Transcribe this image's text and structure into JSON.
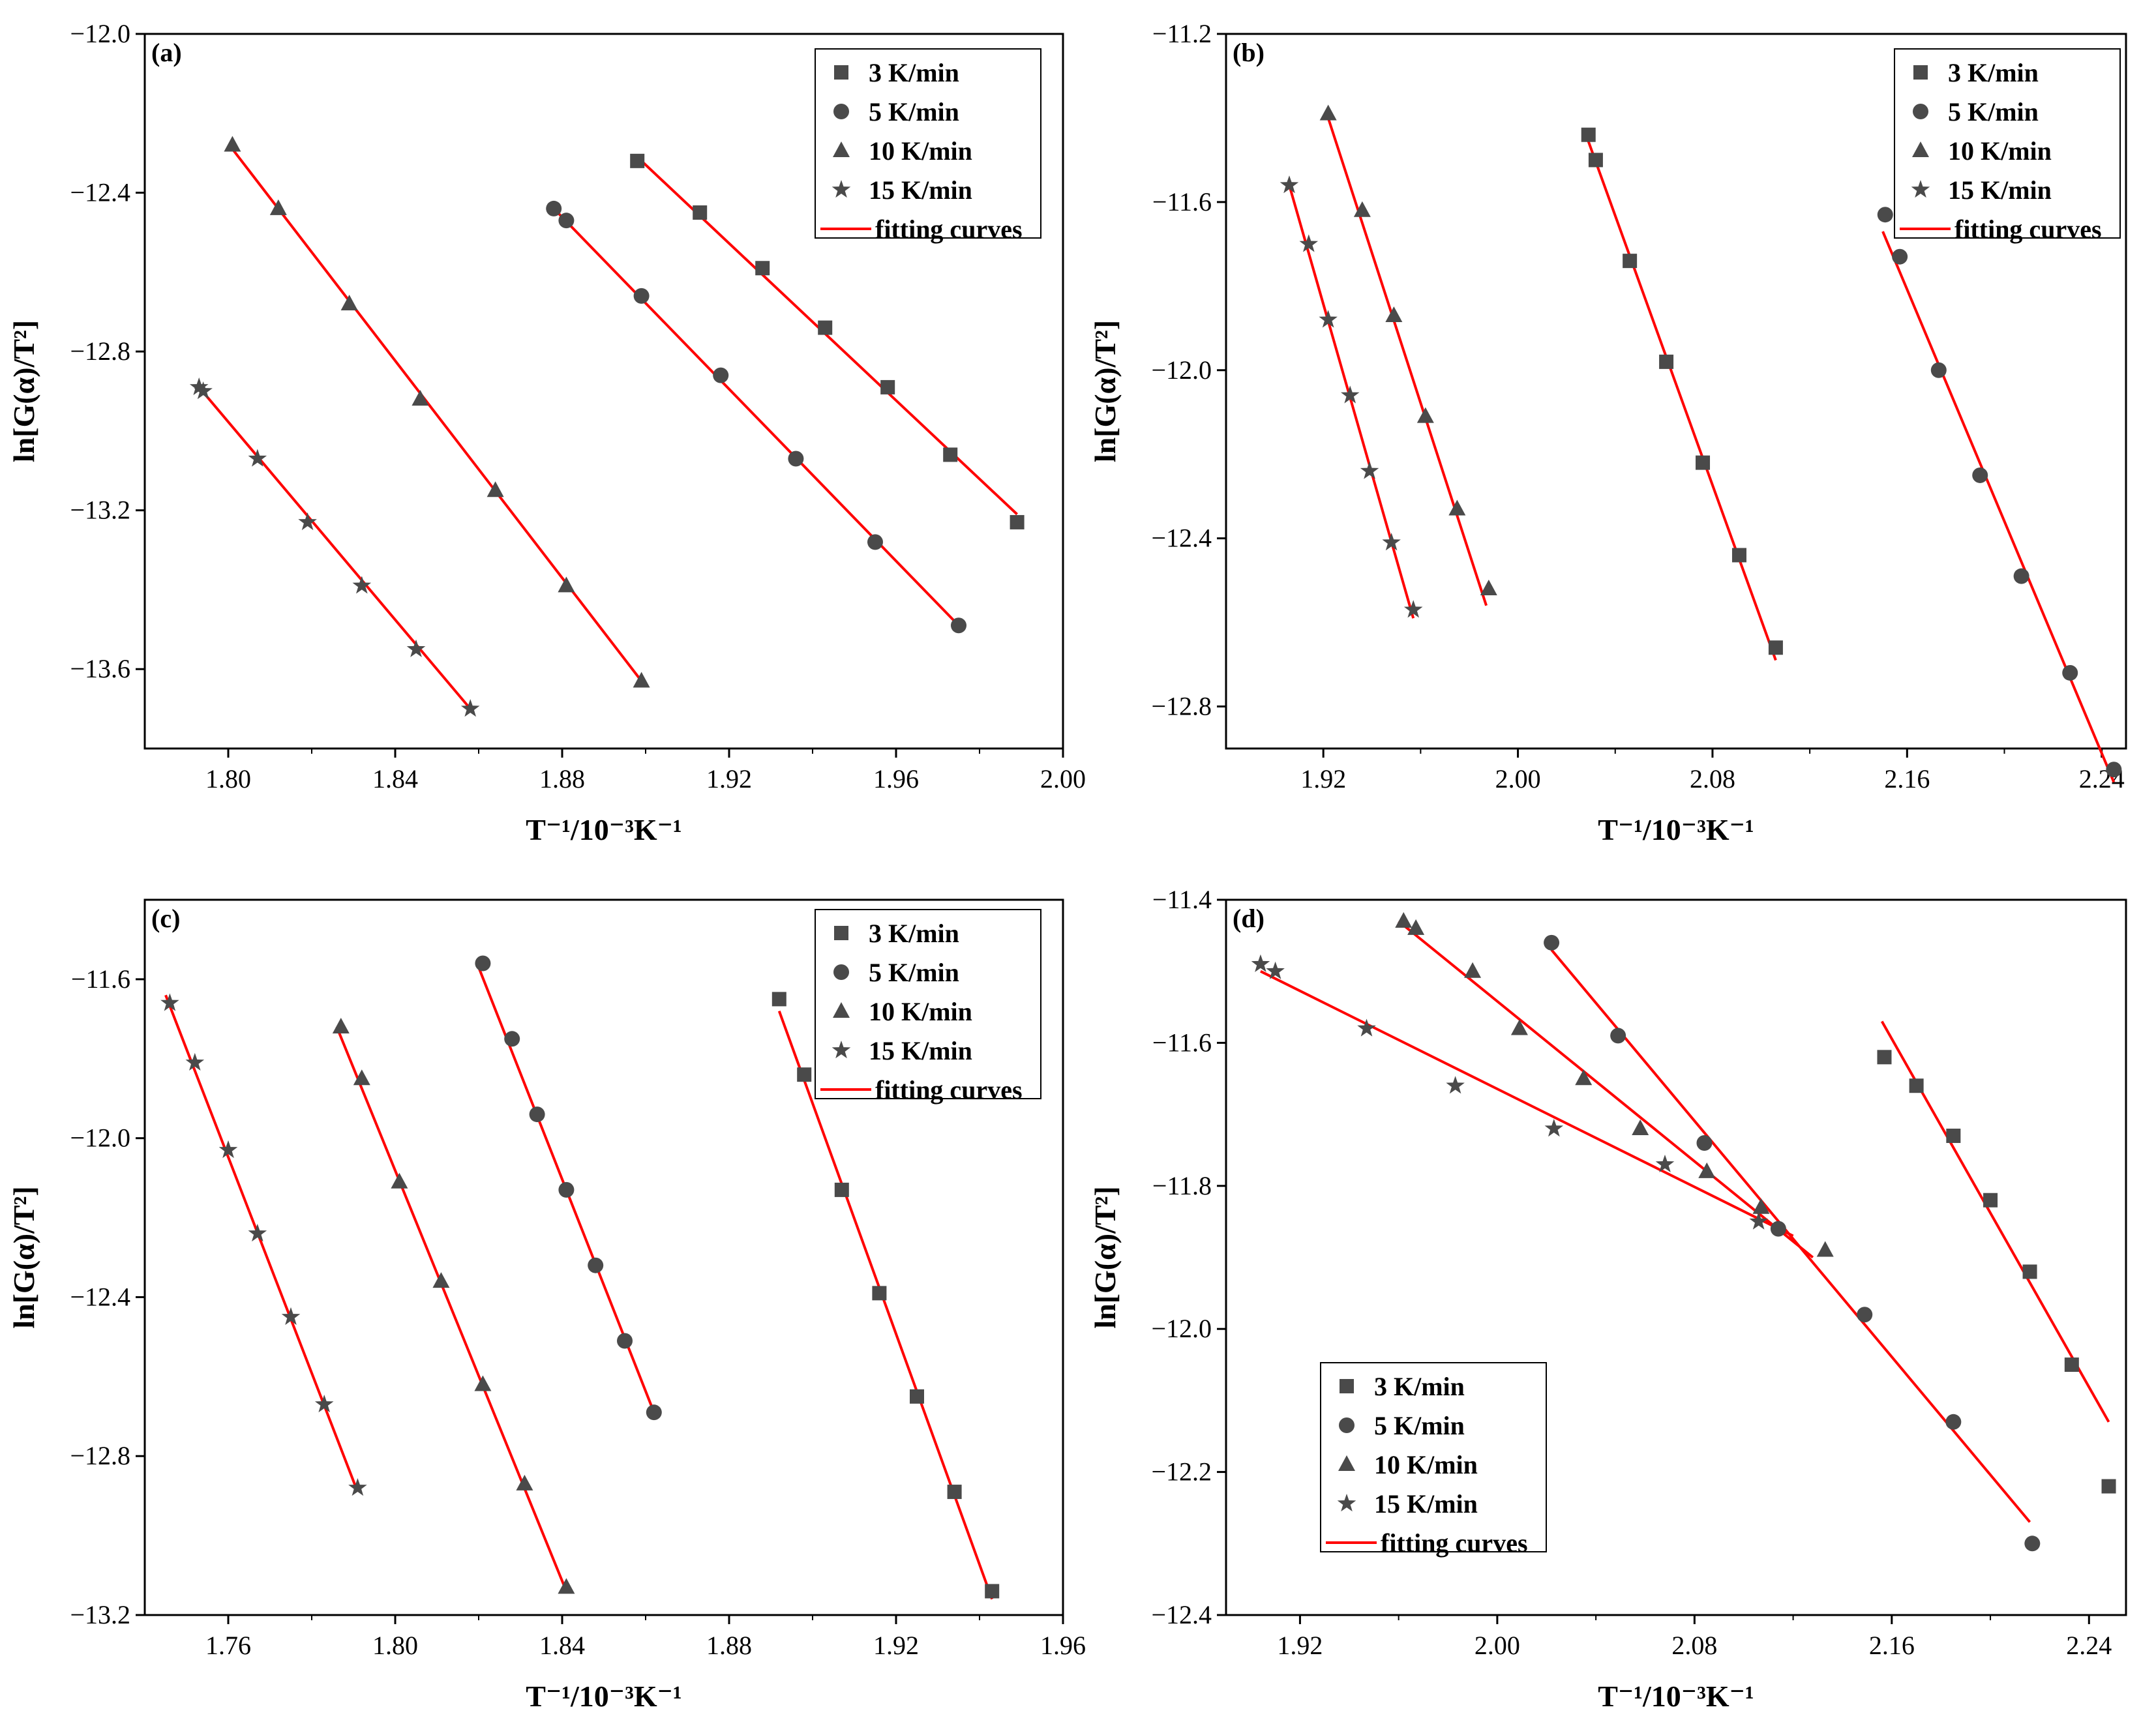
{
  "colors": {
    "marker": "#4a4a4a",
    "fit": "#ff0000",
    "axis": "#000000",
    "background": "#ffffff"
  },
  "chart_data": [
    {
      "panel": "(a)",
      "type": "scatter",
      "xlabel": "T⁻¹/10⁻³K⁻¹",
      "ylabel": "ln[G(α)/T²]",
      "xlim": [
        1.78,
        2.0
      ],
      "ylim": [
        -13.8,
        -12.0
      ],
      "xticks": [
        1.8,
        1.84,
        1.88,
        1.92,
        1.96,
        2.0
      ],
      "xtick_labels": [
        "1.80",
        "1.84",
        "1.88",
        "1.92",
        "1.96",
        "2.00"
      ],
      "yticks": [
        -12.0,
        -12.4,
        -12.8,
        -13.2,
        -13.6
      ],
      "ytick_labels": [
        "−12.0",
        "−12.4",
        "−12.8",
        "−13.2",
        "−13.6"
      ],
      "legend_position": "top-right",
      "fit_label": "fitting curves",
      "series": [
        {
          "name": "3 K/min",
          "marker": "square",
          "x": [
            1.898,
            1.913,
            1.928,
            1.943,
            1.958,
            1.973,
            1.989
          ],
          "y": [
            -12.32,
            -12.45,
            -12.59,
            -12.74,
            -12.89,
            -13.06,
            -13.23
          ],
          "fit": [
            [
              1.898,
              -12.31
            ],
            [
              1.989,
              -13.21
            ]
          ]
        },
        {
          "name": "5 K/min",
          "marker": "circle",
          "x": [
            1.878,
            1.881,
            1.899,
            1.918,
            1.936,
            1.955,
            1.975
          ],
          "y": [
            -12.44,
            -12.47,
            -12.66,
            -12.86,
            -13.07,
            -13.28,
            -13.49
          ],
          "fit": [
            [
              1.878,
              -12.44
            ],
            [
              1.975,
              -13.49
            ]
          ]
        },
        {
          "name": "10 K/min",
          "marker": "triangle",
          "x": [
            1.801,
            1.812,
            1.829,
            1.846,
            1.864,
            1.881,
            1.899
          ],
          "y": [
            -12.28,
            -12.44,
            -12.68,
            -12.92,
            -13.15,
            -13.39,
            -13.63
          ],
          "fit": [
            [
              1.801,
              -12.29
            ],
            [
              1.899,
              -13.63
            ]
          ]
        },
        {
          "name": "15 K/min",
          "marker": "star",
          "x": [
            1.793,
            1.794,
            1.807,
            1.819,
            1.832,
            1.845,
            1.858
          ],
          "y": [
            -12.89,
            -12.9,
            -13.07,
            -13.23,
            -13.39,
            -13.55,
            -13.7
          ],
          "fit": [
            [
              1.793,
              -12.89
            ],
            [
              1.858,
              -13.7
            ]
          ]
        }
      ]
    },
    {
      "panel": "(b)",
      "type": "scatter",
      "xlabel": "T⁻¹/10⁻³K⁻¹",
      "ylabel": "ln[G(α)/T²]",
      "xlim": [
        1.88,
        2.25
      ],
      "ylim": [
        -12.9,
        -11.2
      ],
      "xticks": [
        1.92,
        2.0,
        2.08,
        2.16,
        2.24
      ],
      "xtick_labels": [
        "1.92",
        "2.00",
        "2.08",
        "2.16",
        "2.24"
      ],
      "yticks": [
        -11.2,
        -11.6,
        -12.0,
        -12.4,
        -12.8
      ],
      "ytick_labels": [
        "−11.2",
        "−11.6",
        "−12.0",
        "−12.4",
        "−12.8"
      ],
      "legend_position": "top-right",
      "fit_label": "fitting curves",
      "series": [
        {
          "name": "3 K/min",
          "marker": "square",
          "x": [
            2.029,
            2.032,
            2.046,
            2.061,
            2.076,
            2.091,
            2.106
          ],
          "y": [
            -11.44,
            -11.5,
            -11.74,
            -11.98,
            -12.22,
            -12.44,
            -12.66
          ],
          "fit": [
            [
              2.028,
              -11.44
            ],
            [
              2.106,
              -12.69
            ]
          ]
        },
        {
          "name": "5 K/min",
          "marker": "circle",
          "x": [
            2.151,
            2.157,
            2.173,
            2.19,
            2.207,
            2.227,
            2.245
          ],
          "y": [
            -11.63,
            -11.73,
            -12.0,
            -12.25,
            -12.49,
            -12.72,
            -12.95
          ],
          "fit": [
            [
              2.15,
              -11.67
            ],
            [
              2.245,
              -12.98
            ]
          ]
        },
        {
          "name": "10 K/min",
          "marker": "triangle",
          "x": [
            1.922,
            1.936,
            1.949,
            1.962,
            1.975,
            1.988
          ],
          "y": [
            -11.39,
            -11.62,
            -11.87,
            -12.11,
            -12.33,
            -12.52
          ],
          "fit": [
            [
              1.922,
              -11.4
            ],
            [
              1.987,
              -12.56
            ]
          ]
        },
        {
          "name": "15 K/min",
          "marker": "star",
          "x": [
            1.906,
            1.914,
            1.922,
            1.931,
            1.939,
            1.948,
            1.957
          ],
          "y": [
            -11.56,
            -11.7,
            -11.88,
            -12.06,
            -12.24,
            -12.41,
            -12.57
          ],
          "fit": [
            [
              1.906,
              -11.56
            ],
            [
              1.957,
              -12.59
            ]
          ]
        }
      ]
    },
    {
      "panel": "(c)",
      "type": "scatter",
      "xlabel": "T⁻¹/10⁻³K⁻¹",
      "ylabel": "ln[G(α)/T²]",
      "xlim": [
        1.74,
        1.96
      ],
      "ylim": [
        -13.2,
        -11.4
      ],
      "xticks": [
        1.76,
        1.8,
        1.84,
        1.88,
        1.92,
        1.96
      ],
      "xtick_labels": [
        "1.76",
        "1.80",
        "1.84",
        "1.88",
        "1.92",
        "1.96"
      ],
      "yticks": [
        -11.6,
        -12.0,
        -12.4,
        -12.8,
        -13.2
      ],
      "ytick_labels": [
        "−11.6",
        "−12.0",
        "−12.4",
        "−12.8",
        "−13.2"
      ],
      "legend_position": "top-right",
      "fit_label": "fitting curves",
      "series": [
        {
          "name": "3 K/min",
          "marker": "square",
          "x": [
            1.892,
            1.898,
            1.907,
            1.916,
            1.925,
            1.934,
            1.943
          ],
          "y": [
            -11.65,
            -11.84,
            -12.13,
            -12.39,
            -12.65,
            -12.89,
            -13.14
          ],
          "fit": [
            [
              1.892,
              -11.68
            ],
            [
              1.943,
              -13.16
            ]
          ]
        },
        {
          "name": "5 K/min",
          "marker": "circle",
          "x": [
            1.821,
            1.828,
            1.834,
            1.841,
            1.848,
            1.855,
            1.862
          ],
          "y": [
            -11.56,
            -11.75,
            -11.94,
            -12.13,
            -12.32,
            -12.51,
            -12.69
          ],
          "fit": [
            [
              1.82,
              -11.57
            ],
            [
              1.862,
              -12.69
            ]
          ]
        },
        {
          "name": "10 K/min",
          "marker": "triangle",
          "x": [
            1.787,
            1.792,
            1.801,
            1.811,
            1.821,
            1.831,
            1.841
          ],
          "y": [
            -11.72,
            -11.85,
            -12.11,
            -12.36,
            -12.62,
            -12.87,
            -13.13
          ],
          "fit": [
            [
              1.786,
              -11.72
            ],
            [
              1.841,
              -13.14
            ]
          ]
        },
        {
          "name": "15 K/min",
          "marker": "star",
          "x": [
            1.746,
            1.752,
            1.76,
            1.767,
            1.775,
            1.783,
            1.791
          ],
          "y": [
            -11.66,
            -11.81,
            -12.03,
            -12.24,
            -12.45,
            -12.67,
            -12.88
          ],
          "fit": [
            [
              1.745,
              -11.64
            ],
            [
              1.791,
              -12.89
            ]
          ]
        }
      ]
    },
    {
      "panel": "(d)",
      "type": "scatter",
      "xlabel": "T⁻¹/10⁻³K⁻¹",
      "ylabel": "ln[G(α)/T²]",
      "xlim": [
        1.89,
        2.255
      ],
      "ylim": [
        -12.4,
        -11.4
      ],
      "xticks": [
        1.92,
        2.0,
        2.08,
        2.16,
        2.24
      ],
      "xtick_labels": [
        "1.92",
        "2.00",
        "2.08",
        "2.16",
        "2.24"
      ],
      "yticks": [
        -11.4,
        -11.6,
        -11.8,
        -12.0,
        -12.2,
        -12.4
      ],
      "ytick_labels": [
        "−11.4",
        "−11.6",
        "−11.8",
        "−12.0",
        "−12.2",
        "−12.4"
      ],
      "legend_position": "bottom-left",
      "fit_label": "fitting curves",
      "series": [
        {
          "name": "3 K/min",
          "marker": "square",
          "x": [
            2.157,
            2.17,
            2.185,
            2.2,
            2.216,
            2.233,
            2.248
          ],
          "y": [
            -11.62,
            -11.66,
            -11.73,
            -11.82,
            -11.92,
            -12.05,
            -12.22
          ],
          "fit": [
            [
              2.156,
              -11.57
            ],
            [
              2.248,
              -12.13
            ]
          ]
        },
        {
          "name": "5 K/min",
          "marker": "circle",
          "x": [
            2.022,
            2.049,
            2.084,
            2.114,
            2.149,
            2.185,
            2.217
          ],
          "y": [
            -11.46,
            -11.59,
            -11.74,
            -11.86,
            -11.98,
            -12.13,
            -12.3
          ],
          "fit": [
            [
              2.022,
              -11.47
            ],
            [
              2.216,
              -12.27
            ]
          ]
        },
        {
          "name": "10 K/min",
          "marker": "triangle",
          "x": [
            1.962,
            1.967,
            1.99,
            2.009,
            2.035,
            2.058,
            2.085,
            2.107,
            2.133
          ],
          "y": [
            -11.43,
            -11.44,
            -11.5,
            -11.58,
            -11.65,
            -11.72,
            -11.78,
            -11.83,
            -11.89
          ],
          "fit": [
            [
              1.96,
              -11.43
            ],
            [
              2.128,
              -11.9
            ]
          ]
        },
        {
          "name": "15 K/min",
          "marker": "star",
          "x": [
            1.904,
            1.91,
            1.947,
            1.983,
            2.023,
            2.068,
            2.106
          ],
          "y": [
            -11.49,
            -11.5,
            -11.58,
            -11.66,
            -11.72,
            -11.77,
            -11.85
          ],
          "fit": [
            [
              1.904,
              -11.5
            ],
            [
              2.12,
              -11.87
            ]
          ]
        }
      ]
    }
  ]
}
